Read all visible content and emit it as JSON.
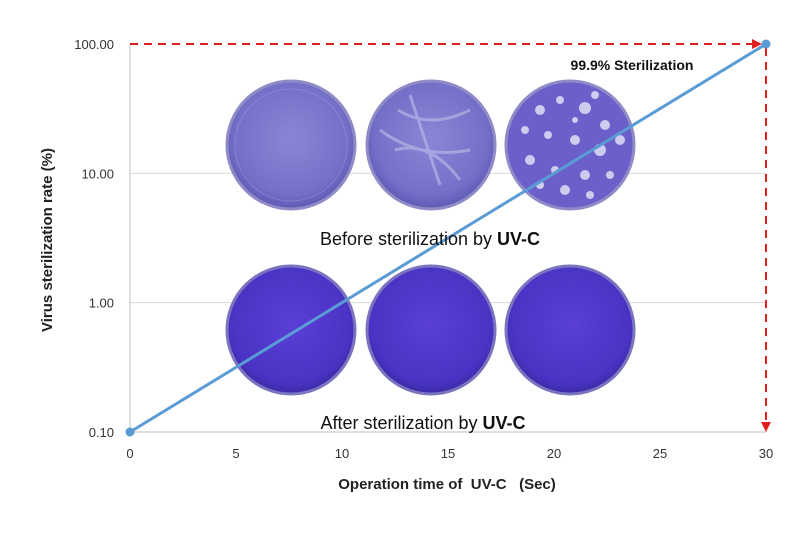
{
  "chart_data": {
    "type": "line",
    "xlabel": "Operation time of  UV-C   (Sec)",
    "ylabel": "Virus sterilization rate (%)",
    "xlim": [
      0,
      30
    ],
    "ylim": [
      0.1,
      100
    ],
    "yscale": "log",
    "xticks": [
      "0",
      "5",
      "10",
      "15",
      "20",
      "25",
      "30"
    ],
    "yticks": [
      "100.00",
      "10.00",
      "1.00",
      "0.10"
    ],
    "grid": "horizontal",
    "series": [
      {
        "x": [
          0,
          30
        ],
        "y": [
          0.1,
          100
        ],
        "color": "#5b9bd5"
      }
    ],
    "annotations": {
      "peak_label": "99.9% Sterilization",
      "before_caption_prefix": "Before sterilization by ",
      "before_caption_bold": "UV-C",
      "after_caption_prefix": "After sterilization by ",
      "after_caption_bold": "UV-C"
    },
    "arrow_color": "#e02020",
    "images": {
      "before": [
        "plaque-plate-dense",
        "plaque-plate-partial",
        "plaque-plate-sparse"
      ],
      "after": [
        "clear-plate",
        "clear-plate",
        "clear-plate"
      ]
    }
  }
}
